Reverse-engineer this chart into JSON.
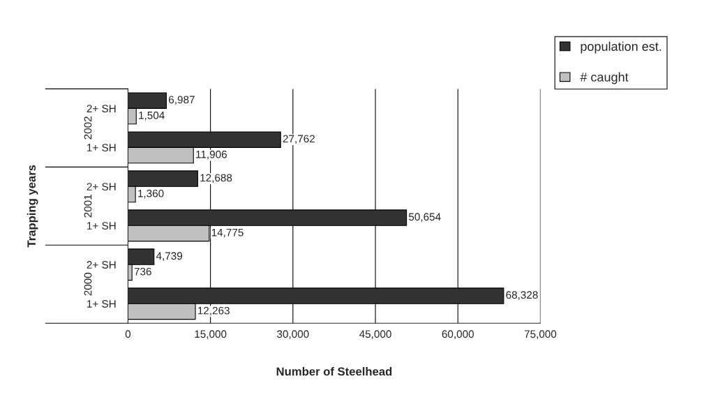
{
  "chart_data": {
    "type": "bar",
    "orientation": "horizontal",
    "xlabel": "Number of Steelhead",
    "ylabel": "Trapping years",
    "categories": [
      "2+ SH",
      "1+ SH",
      "2+ SH",
      "1+ SH",
      "2+ SH",
      "1+ SH"
    ],
    "series": [
      {
        "name": "population est.",
        "color": "#333333",
        "values": [
          6987,
          27762,
          12688,
          50654,
          4739,
          68328
        ],
        "value_labels": [
          "6,987",
          "27,762",
          "12,688",
          "50,654",
          "4,739",
          "68,328"
        ]
      },
      {
        "name": "# caught",
        "color": "#c0c0c0",
        "values": [
          1504,
          11906,
          1360,
          14775,
          736,
          12263
        ],
        "value_labels": [
          "1,504",
          "11,906",
          "1,360",
          "14,775",
          "736",
          "12,263"
        ]
      }
    ],
    "annotations": [
      "2002",
      "2001",
      "2000"
    ],
    "xlim": [
      0,
      75000
    ],
    "xticks": [
      0,
      {
        "value": 15000,
        "label": "15,000"
      },
      {
        "value": 30000,
        "label": "30,000"
      },
      {
        "value": 45000,
        "label": "45,000"
      },
      {
        "value": 60000,
        "label": "60,000"
      },
      {
        "value": 75000,
        "label": "75,000"
      }
    ],
    "grid": "x",
    "legend": "top right"
  }
}
